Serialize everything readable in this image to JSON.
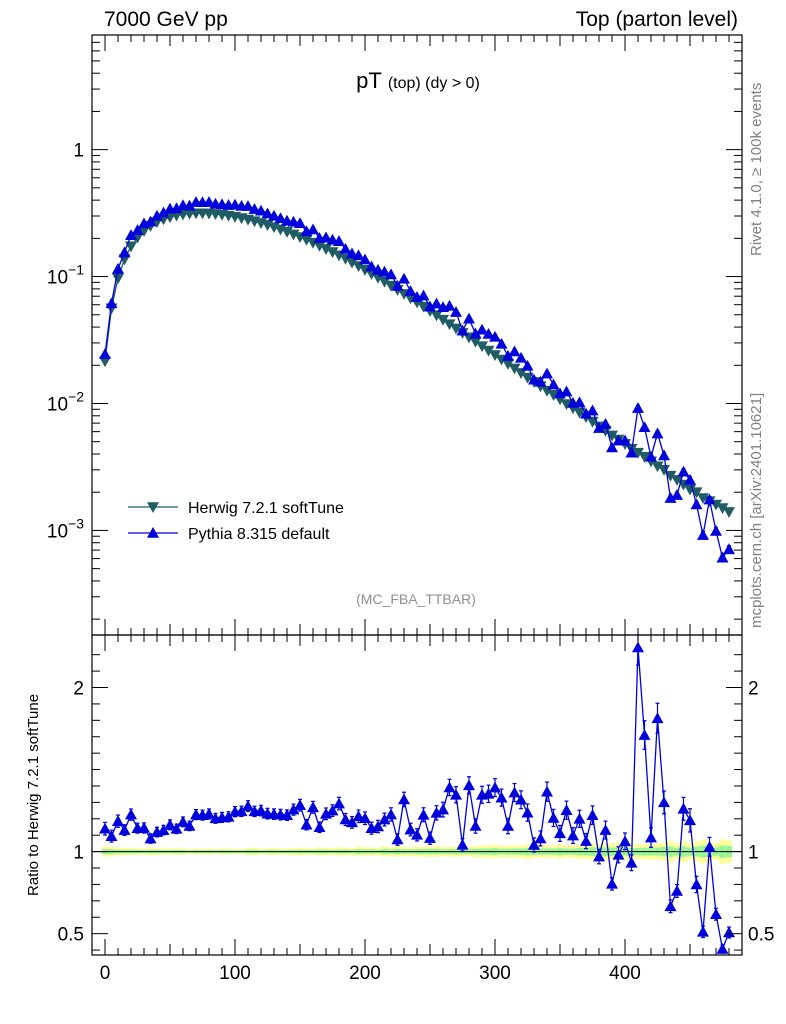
{
  "header": {
    "left": "7000 GeV pp",
    "right": "Top (parton level)"
  },
  "side_labels": {
    "rivet": "Rivet 4.1.0, ≥ 100k events",
    "mcplots": "mcplots.cern.ch [arXiv:2401.10621]"
  },
  "colors": {
    "herwig": "#1f5c63",
    "pythia": "#0000dd",
    "band_inner": "#98f598",
    "band_outer": "#fdfd9a"
  },
  "chart_data": [
    {
      "type": "line",
      "panel": "main",
      "title": "pT (top) (dy > 0)",
      "title_main": "pT",
      "title_sub": "(top) (dy > 0)",
      "watermark": "(MC_FBA_TTBAR)",
      "yscale": "log",
      "ylim": [
        0.00015,
        8
      ],
      "xlim": [
        -10,
        490
      ],
      "yticks": [
        0.001,
        0.01,
        0.1,
        1
      ],
      "ytick_labels": [
        {
          "base": "10",
          "exp": "−3"
        },
        {
          "base": "10",
          "exp": "−2"
        },
        {
          "base": "10",
          "exp": "−1"
        },
        {
          "base": "1",
          "exp": ""
        }
      ],
      "legend": {
        "position": "lower-left",
        "entries": [
          "Herwig 7.2.1 softTune",
          "Pythia 8.315 default"
        ]
      },
      "x": [
        0,
        5,
        10,
        15,
        20,
        25,
        30,
        35,
        40,
        45,
        50,
        55,
        60,
        65,
        70,
        75,
        80,
        85,
        90,
        95,
        100,
        105,
        110,
        115,
        120,
        125,
        130,
        135,
        140,
        145,
        150,
        155,
        160,
        165,
        170,
        175,
        180,
        185,
        190,
        195,
        200,
        205,
        210,
        215,
        220,
        225,
        230,
        235,
        240,
        245,
        250,
        255,
        260,
        265,
        270,
        275,
        280,
        285,
        290,
        295,
        300,
        305,
        310,
        315,
        320,
        325,
        330,
        335,
        340,
        345,
        350,
        355,
        360,
        365,
        370,
        375,
        380,
        385,
        390,
        395,
        400,
        405,
        410,
        415,
        420,
        425,
        430,
        435,
        440,
        445,
        450,
        455,
        460,
        465,
        470,
        475,
        480
      ],
      "series": [
        {
          "name": "Herwig 7.2.1 softTune",
          "marker": "triangle-down",
          "values": [
            0.0215,
            0.0562,
            0.097,
            0.137,
            0.173,
            0.203,
            0.229,
            0.251,
            0.269,
            0.283,
            0.294,
            0.303,
            0.309,
            0.313,
            0.315,
            0.315,
            0.314,
            0.311,
            0.307,
            0.302,
            0.296,
            0.289,
            0.281,
            0.273,
            0.264,
            0.255,
            0.245,
            0.235,
            0.225,
            0.215,
            0.205,
            0.195,
            0.185,
            0.175,
            0.165,
            0.156,
            0.147,
            0.138,
            0.129,
            0.121,
            0.113,
            0.105,
            0.098,
            0.0912,
            0.0848,
            0.0786,
            0.073,
            0.0676,
            0.0626,
            0.0579,
            0.0535,
            0.0495,
            0.0457,
            0.0422,
            0.039,
            0.036,
            0.0332,
            0.0307,
            0.0283,
            0.0261,
            0.0241,
            0.0222,
            0.0205,
            0.0189,
            0.0174,
            0.016,
            0.0148,
            0.0137,
            0.0126,
            0.0117,
            0.0108,
            0.0099,
            0.0092,
            0.0085,
            0.0078,
            0.0072,
            0.0066,
            0.0061,
            0.0056,
            0.0052,
            0.0048,
            0.0044,
            0.0041,
            0.0038,
            0.0035,
            0.0032,
            0.003,
            0.0027,
            0.0025,
            0.0023,
            0.0021,
            0.002,
            0.0018,
            0.0017,
            0.0016,
            0.0015,
            0.0014
          ],
          "errors": [
            0.0002,
            0.0005,
            0.0008,
            0.001,
            0.0012,
            0.0013,
            0.0015,
            0.0016,
            0.0017,
            0.0017,
            0.0018,
            0.0018,
            0.0018,
            0.0018,
            0.0018,
            0.0018,
            0.0018,
            0.0018,
            0.0018,
            0.0018,
            0.0017,
            0.0017,
            0.0017,
            0.0016,
            0.0016,
            0.0016,
            0.0015,
            0.0015,
            0.0014,
            0.0014,
            0.0014,
            0.0013,
            0.0013,
            0.0012,
            0.0012,
            0.0011,
            0.0011,
            0.0011,
            0.001,
            0.001,
            0.00095,
            0.0009,
            0.00085,
            0.0008,
            0.00075,
            0.0007,
            0.00066,
            0.00062,
            0.00058,
            0.00055,
            0.00051,
            0.00048,
            0.00045,
            0.00042,
            0.0004,
            0.00037,
            0.00035,
            0.00033,
            0.00031,
            0.00029,
            0.00027,
            0.00025,
            0.00024,
            0.00022,
            0.00021,
            0.0002,
            0.00018,
            0.00017,
            0.00016,
            0.00015,
            0.00014,
            0.00013,
            0.00012,
            0.00011,
            0.0001,
            0.0001,
            9e-05,
            9e-05,
            8e-05,
            8e-05,
            7e-05,
            7e-05,
            6e-05,
            6e-05,
            6e-05,
            5e-05,
            5e-05,
            5e-05,
            4e-05,
            4e-05,
            4e-05,
            4e-05,
            4e-05,
            3e-05,
            3e-05,
            3e-05,
            3e-05
          ]
        },
        {
          "name": "Pythia 8.315 default",
          "marker": "triangle-up",
          "values": [
            0.0245,
            0.0615,
            0.115,
            0.155,
            0.212,
            0.232,
            0.262,
            0.271,
            0.301,
            0.32,
            0.342,
            0.345,
            0.365,
            0.362,
            0.386,
            0.385,
            0.386,
            0.374,
            0.371,
            0.366,
            0.368,
            0.36,
            0.359,
            0.34,
            0.33,
            0.314,
            0.301,
            0.288,
            0.275,
            0.27,
            0.263,
            0.227,
            0.235,
            0.201,
            0.203,
            0.195,
            0.19,
            0.165,
            0.152,
            0.147,
            0.136,
            0.12,
            0.113,
            0.109,
            0.104,
            0.0844,
            0.0962,
            0.0767,
            0.069,
            0.0709,
            0.0579,
            0.0612,
            0.0574,
            0.0587,
            0.0525,
            0.0375,
            0.0466,
            0.0355,
            0.0381,
            0.0353,
            0.0335,
            0.0295,
            0.0237,
            0.0257,
            0.0229,
            0.0198,
            0.0154,
            0.0148,
            0.0172,
            0.0141,
            0.012,
            0.0124,
            0.0101,
            0.0102,
            0.0083,
            0.0088,
            0.0064,
            0.0069,
            0.0045,
            0.0051,
            0.0051,
            0.0041,
            0.0092,
            0.0065,
            0.0038,
            0.0058,
            0.0039,
            0.0018,
            0.0019,
            0.0029,
            0.0025,
            0.0016,
            0.00092,
            0.00175,
            0.00099,
            0.00061,
            0.00071
          ]
        }
      ]
    },
    {
      "type": "line",
      "panel": "ratio",
      "ylabel": "Ratio to Herwig 7.2.1 softTune",
      "xlim": [
        -10,
        490
      ],
      "ylim": [
        0.37,
        2.32
      ],
      "yticks": [
        0.5,
        1,
        2
      ],
      "ytick_labels": [
        "0.5",
        "1",
        "2"
      ],
      "xticks": [
        0,
        100,
        200,
        300,
        400
      ],
      "xtick_labels": [
        "0",
        "100",
        "200",
        "300",
        "400"
      ],
      "bands": "statistical uncertainty of reference (inner green, outer yellow)",
      "series": [
        {
          "name": "Pythia 8.315 default",
          "ref": "Herwig 7.2.1 softTune"
        }
      ]
    }
  ]
}
